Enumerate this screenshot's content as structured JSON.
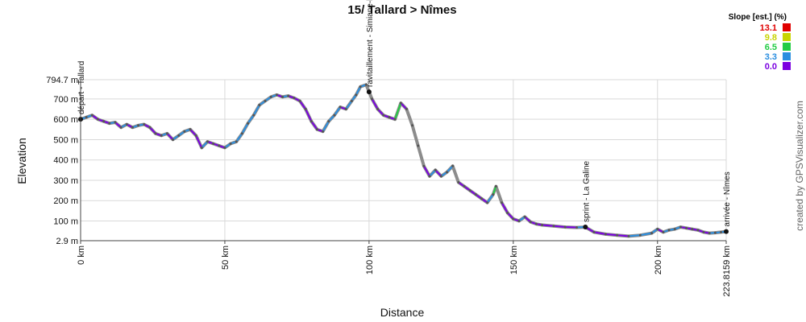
{
  "chart_data": {
    "type": "line",
    "title": "15/ Tallard > Nîmes",
    "xlabel": "Distance",
    "ylabel": "Elevation",
    "xlim": [
      0,
      223.8159
    ],
    "ylim": [
      2.9,
      794.7
    ],
    "x_ticks": [
      {
        "value": 0,
        "label": "0 km"
      },
      {
        "value": 50,
        "label": "50 km"
      },
      {
        "value": 100,
        "label": "100 km"
      },
      {
        "value": 150,
        "label": "150 km"
      },
      {
        "value": 200,
        "label": "200 km"
      },
      {
        "value": 223.8159,
        "label": "223.8159 km"
      }
    ],
    "y_ticks": [
      {
        "value": 2.9,
        "label": "2.9 m"
      },
      {
        "value": 100,
        "label": "100 m"
      },
      {
        "value": 200,
        "label": "200 m"
      },
      {
        "value": 300,
        "label": "300 m"
      },
      {
        "value": 400,
        "label": "400 m"
      },
      {
        "value": 500,
        "label": "500 m"
      },
      {
        "value": 600,
        "label": "600 m"
      },
      {
        "value": 700,
        "label": "700 m"
      },
      {
        "value": 794.7,
        "label": "794.7 m"
      }
    ],
    "grid": true,
    "series": [
      {
        "x": [
          0,
          2,
          4,
          6,
          8,
          10,
          12,
          14,
          16,
          18,
          20,
          22,
          24,
          26,
          28,
          30,
          32,
          34,
          36,
          38,
          40,
          42,
          44,
          46,
          48,
          50,
          52,
          54,
          56,
          58,
          60,
          62,
          64,
          66,
          68,
          70,
          72,
          74,
          76,
          78,
          80,
          82,
          84,
          86,
          88,
          90,
          92,
          94,
          95.5,
          97,
          99,
          101,
          103,
          105,
          107,
          109,
          111,
          113,
          115,
          117,
          119,
          121,
          123,
          125,
          127,
          129,
          131,
          133,
          135,
          137,
          139,
          141,
          143,
          144,
          146,
          148,
          150,
          152,
          154,
          156,
          158,
          160,
          164,
          168,
          172,
          175,
          178,
          182,
          186,
          190,
          194,
          198,
          200,
          202,
          204,
          206,
          208,
          210,
          212,
          214,
          216,
          218,
          220,
          222,
          223.8159
        ],
        "y": [
          600,
          610,
          620,
          600,
          590,
          580,
          585,
          560,
          575,
          560,
          570,
          575,
          560,
          530,
          520,
          530,
          500,
          520,
          540,
          550,
          520,
          460,
          490,
          480,
          470,
          460,
          480,
          490,
          530,
          580,
          620,
          670,
          690,
          710,
          720,
          710,
          715,
          705,
          690,
          650,
          590,
          550,
          540,
          590,
          620,
          660,
          650,
          690,
          720,
          760,
          770,
          700,
          650,
          620,
          610,
          600,
          680,
          650,
          570,
          470,
          370,
          320,
          350,
          320,
          340,
          370,
          290,
          270,
          250,
          230,
          210,
          190,
          230,
          270,
          190,
          140,
          110,
          100,
          120,
          95,
          85,
          80,
          75,
          70,
          68,
          70,
          45,
          35,
          30,
          25,
          30,
          40,
          60,
          45,
          55,
          60,
          70,
          65,
          60,
          55,
          45,
          40,
          42,
          45,
          48
        ]
      }
    ],
    "waypoints": [
      {
        "x": 0,
        "label": "départ - Tallard"
      },
      {
        "x": 100,
        "label": "ravitaillement - Simiane-la-Rotonde"
      },
      {
        "x": 175,
        "label": "sprint - La Galine"
      },
      {
        "x": 223.8159,
        "label": "arrivée - Nîmes"
      }
    ],
    "legend": {
      "title": "Slope [est.] (%)",
      "position": "top-right",
      "entries": [
        {
          "label": "13.1",
          "color": "#e00000"
        },
        {
          "label": "9.8",
          "color": "#c8d400"
        },
        {
          "label": "6.5",
          "color": "#22cc44"
        },
        {
          "label": "3.3",
          "color": "#2a8ee0"
        },
        {
          "label": "0.0",
          "color": "#7a00e0"
        }
      ]
    },
    "colors": {
      "line": "#8c8c8c",
      "grid": "#d9d9d9",
      "axis": "#444444"
    }
  },
  "credit": "created by GPSVisualizer.com"
}
